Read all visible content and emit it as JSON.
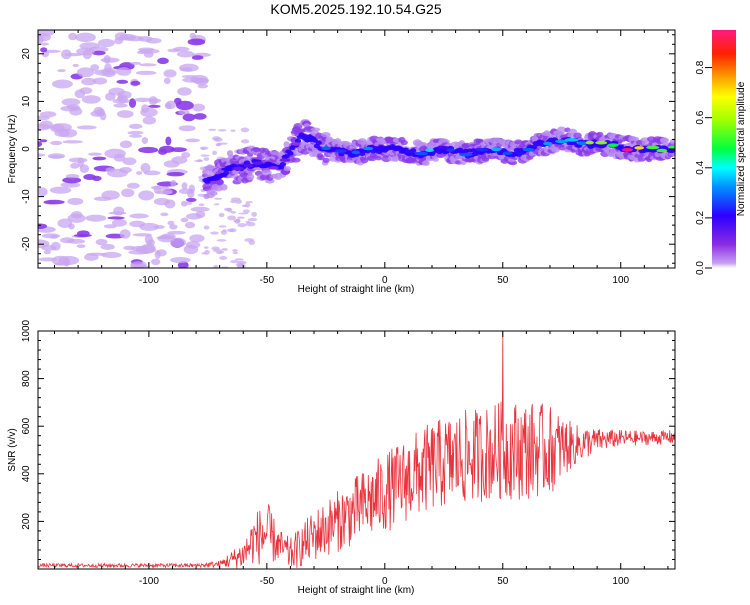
{
  "title": "KOM5.2025.192.10.54.G25",
  "colors": {
    "snr_line": "#e8323c",
    "axis": "#000000",
    "background": "#ffffff",
    "scatter_faint": "#c8a6f0"
  },
  "chart_data": [
    {
      "type": "heatmap",
      "xlabel": "Height of straight line (km)",
      "ylabel": "Frequency (Hz)",
      "xlim": [
        -147,
        123
      ],
      "ylim": [
        -25,
        25
      ],
      "x_ticks": [
        -100,
        -50,
        0,
        50,
        100
      ],
      "x_tick_labels": [
        "-100",
        "-50",
        "0",
        "50",
        "100"
      ],
      "y_ticks": [
        -20,
        -10,
        0,
        10,
        20
      ],
      "y_tick_labels": [
        "-20",
        "-10",
        "0",
        "10",
        "20"
      ],
      "grid": false,
      "colormap": "rainbow (purple to red)",
      "colorbar": {
        "label": "Normalized spectral amplitude",
        "range": [
          0,
          0.95
        ],
        "ticks": [
          0.0,
          0.2,
          0.4,
          0.6,
          0.8
        ],
        "tick_labels": [
          "0.0",
          "0.2",
          "0.4",
          "0.6",
          "0.8"
        ],
        "position": "right"
      },
      "ridge": {
        "description_points_x": [
          -75,
          -65,
          -55,
          -45,
          -35,
          -25,
          -15,
          -5,
          5,
          15,
          25,
          35,
          45,
          55,
          65,
          75,
          85,
          95,
          105,
          115,
          123
        ],
        "description_points_y": [
          -7,
          -4,
          -3,
          -4,
          3,
          0,
          -1,
          0,
          0,
          -1,
          0,
          -1,
          0,
          -1,
          1,
          2,
          1,
          1,
          0,
          0,
          0
        ],
        "peak_amplitude": [
          0.18,
          0.22,
          0.2,
          0.15,
          0.12,
          0.3,
          0.25,
          0.35,
          0.3,
          0.35,
          0.3,
          0.3,
          0.35,
          0.3,
          0.3,
          0.45,
          0.5,
          0.75,
          0.9,
          0.6,
          0.5
        ]
      }
    },
    {
      "type": "line",
      "xlabel": "Height of straight line (km)",
      "ylabel": "SNR (v/v)",
      "xlim": [
        -147,
        123
      ],
      "ylim": [
        0,
        1000
      ],
      "x_ticks": [
        -100,
        -50,
        0,
        50,
        100
      ],
      "x_tick_labels": [
        "-100",
        "-50",
        "0",
        "50",
        "100"
      ],
      "y_ticks": [
        200,
        400,
        600,
        800,
        1000
      ],
      "y_tick_labels": [
        "200",
        "400",
        "600",
        "800",
        "1000"
      ],
      "grid": false,
      "series": [
        {
          "envelope_x": [
            -147,
            -120,
            -100,
            -80,
            -70,
            -60,
            -55,
            -50,
            -45,
            -40,
            -30,
            -20,
            -10,
            0,
            10,
            20,
            30,
            40,
            50,
            60,
            70,
            80,
            90,
            100,
            110,
            123
          ],
          "envelope_mean": [
            15,
            15,
            15,
            15,
            20,
            60,
            130,
            150,
            100,
            60,
            140,
            200,
            260,
            320,
            380,
            430,
            460,
            480,
            500,
            500,
            500,
            520,
            540,
            550,
            550,
            555
          ],
          "envelope_amp": [
            8,
            8,
            8,
            8,
            15,
            60,
            110,
            140,
            70,
            70,
            110,
            130,
            150,
            170,
            180,
            190,
            200,
            200,
            210,
            210,
            190,
            90,
            50,
            35,
            30,
            30
          ],
          "spike": {
            "x": 50,
            "y": 1000
          }
        }
      ]
    }
  ]
}
